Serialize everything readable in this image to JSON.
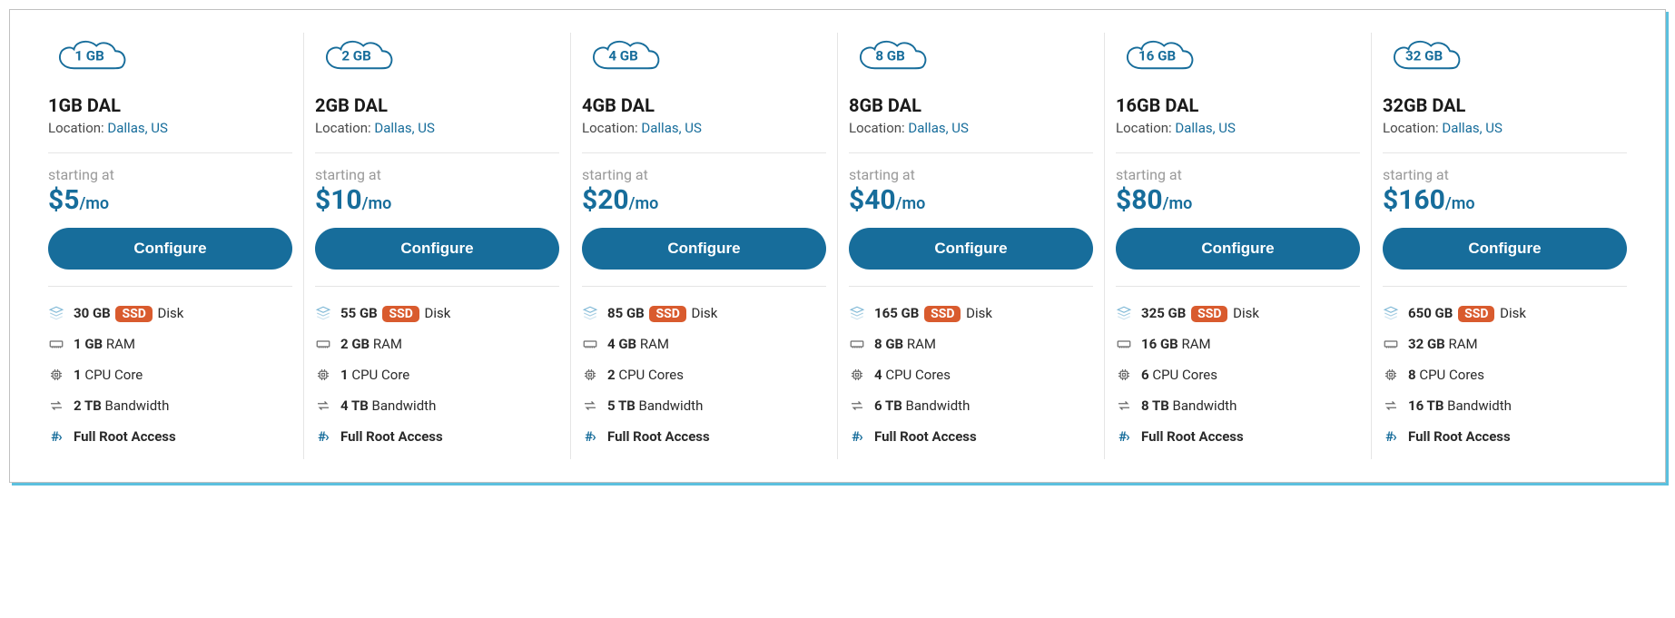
{
  "colors": {
    "brand": "#176d9b",
    "ssd_badge": "#d95b2e",
    "shadow": "#5bc0de",
    "border": "#c0c0c0",
    "divider": "#e5e5e5",
    "muted": "#9a9a9a",
    "text": "#1a1a1a"
  },
  "labels": {
    "location_prefix": "Location: ",
    "starting_at": "starting at",
    "per_suffix": "/mo",
    "configure": "Configure",
    "disk_suffix": " Disk",
    "ram_suffix": " RAM",
    "cpu_suffix_singular": " CPU Core",
    "cpu_suffix_plural": " CPU Cores",
    "bw_suffix": " Bandwidth",
    "root": "Full Root Access",
    "ssd": "SSD"
  },
  "plans": [
    {
      "cloud_label": "1 GB",
      "title": "1GB DAL",
      "location": "Dallas, US",
      "price": "$5",
      "disk": "30 GB",
      "ram": "1 GB",
      "cpu": "1",
      "cpu_plural": false,
      "bw": "2 TB"
    },
    {
      "cloud_label": "2 GB",
      "title": "2GB DAL",
      "location": "Dallas, US",
      "price": "$10",
      "disk": "55 GB",
      "ram": "2 GB",
      "cpu": "1",
      "cpu_plural": false,
      "bw": "4 TB"
    },
    {
      "cloud_label": "4 GB",
      "title": "4GB DAL",
      "location": "Dallas, US",
      "price": "$20",
      "disk": "85 GB",
      "ram": "4 GB",
      "cpu": "2",
      "cpu_plural": true,
      "bw": "5 TB"
    },
    {
      "cloud_label": "8 GB",
      "title": "8GB DAL",
      "location": "Dallas, US",
      "price": "$40",
      "disk": "165 GB",
      "ram": "8 GB",
      "cpu": "4",
      "cpu_plural": true,
      "bw": "6 TB"
    },
    {
      "cloud_label": "16 GB",
      "title": "16GB DAL",
      "location": "Dallas, US",
      "price": "$80",
      "disk": "325 GB",
      "ram": "16 GB",
      "cpu": "6",
      "cpu_plural": true,
      "bw": "8 TB"
    },
    {
      "cloud_label": "32 GB",
      "title": "32GB DAL",
      "location": "Dallas, US",
      "price": "$160",
      "disk": "650 GB",
      "ram": "32 GB",
      "cpu": "8",
      "cpu_plural": true,
      "bw": "16 TB"
    }
  ]
}
